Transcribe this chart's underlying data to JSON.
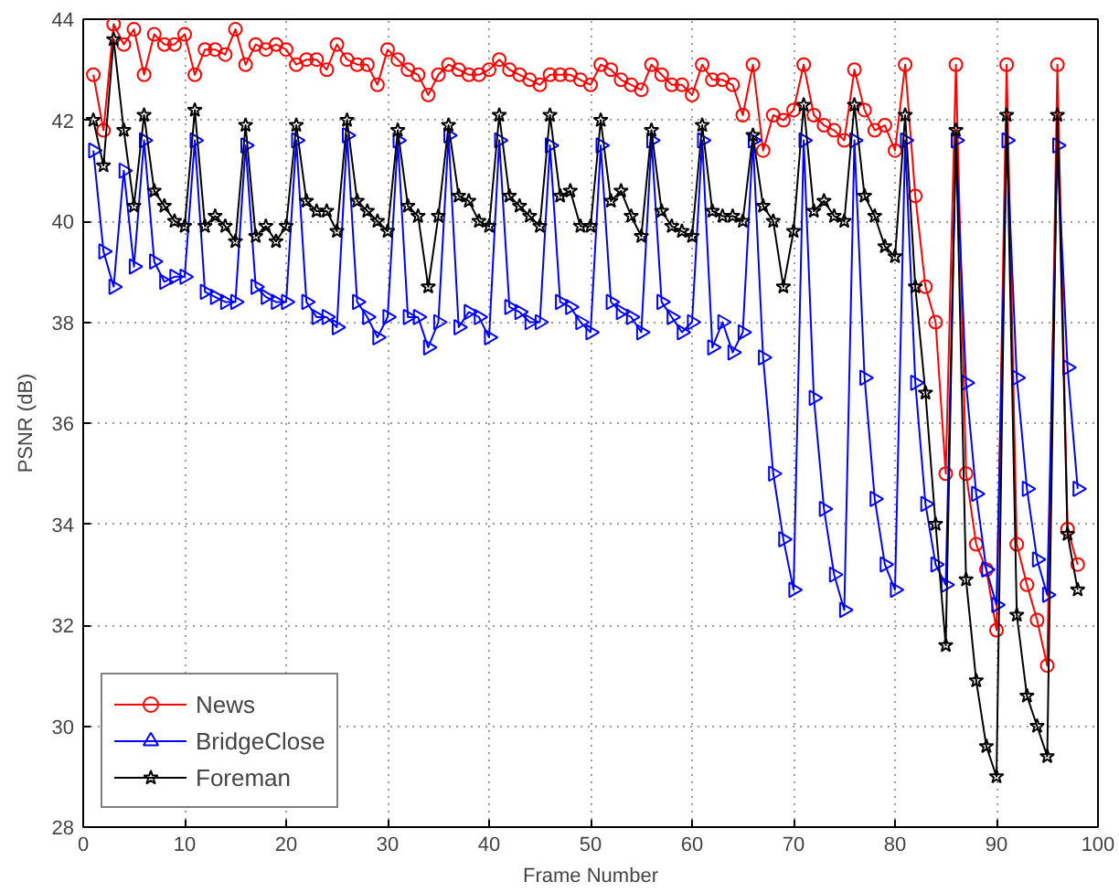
{
  "chart_data": {
    "type": "line",
    "xlabel": "Frame Number",
    "ylabel": "PSNR (dB)",
    "x": [
      1,
      2,
      3,
      4,
      5,
      6,
      7,
      8,
      9,
      10,
      11,
      12,
      13,
      14,
      15,
      16,
      17,
      18,
      19,
      20,
      21,
      22,
      23,
      24,
      25,
      26,
      27,
      28,
      29,
      30,
      31,
      32,
      33,
      34,
      35,
      36,
      37,
      38,
      39,
      40,
      41,
      42,
      43,
      44,
      45,
      46,
      47,
      48,
      49,
      50,
      51,
      52,
      53,
      54,
      55,
      56,
      57,
      58,
      59,
      60,
      61,
      62,
      63,
      64,
      65,
      66,
      67,
      68,
      69,
      70,
      71,
      72,
      73,
      74,
      75,
      76,
      77,
      78,
      79,
      80,
      81,
      82,
      83,
      84,
      85,
      86,
      87,
      88,
      89,
      90,
      91,
      92,
      93,
      94,
      95,
      96,
      97,
      98
    ],
    "xlim": [
      0,
      100
    ],
    "xticks": [
      0,
      10,
      20,
      30,
      40,
      50,
      60,
      70,
      80,
      90,
      100
    ],
    "ylim": [
      28,
      44
    ],
    "yticks": [
      28,
      30,
      32,
      34,
      36,
      38,
      40,
      42,
      44
    ],
    "grid": true,
    "legend": "bottom left",
    "line_style": "solid",
    "series": [
      {
        "name": "News",
        "color": "#ff0000",
        "marker": "circle",
        "values": [
          42.9,
          41.8,
          43.9,
          43.5,
          43.8,
          42.9,
          43.7,
          43.5,
          43.5,
          43.7,
          42.9,
          43.4,
          43.4,
          43.3,
          43.8,
          43.1,
          43.5,
          43.4,
          43.5,
          43.4,
          43.1,
          43.2,
          43.2,
          43.0,
          43.5,
          43.2,
          43.1,
          43.1,
          42.7,
          43.4,
          43.2,
          43.0,
          42.9,
          42.5,
          42.9,
          43.1,
          43.0,
          42.9,
          42.9,
          43.0,
          43.2,
          43.0,
          42.9,
          42.8,
          42.7,
          42.9,
          42.9,
          42.9,
          42.8,
          42.7,
          43.1,
          43.0,
          42.8,
          42.7,
          42.6,
          43.1,
          42.9,
          42.7,
          42.7,
          42.5,
          43.1,
          42.8,
          42.8,
          42.7,
          42.1,
          43.1,
          41.4,
          42.1,
          42.0,
          42.2,
          43.1,
          42.1,
          41.9,
          41.8,
          41.6,
          43.0,
          42.2,
          41.8,
          41.9,
          41.4,
          43.1,
          40.5,
          38.7,
          38.0,
          35.0,
          43.1,
          35.0,
          33.6,
          33.1,
          31.9,
          43.1,
          33.6,
          32.8,
          32.1,
          31.2,
          43.1,
          33.9,
          33.2
        ]
      },
      {
        "name": "BridgeClose",
        "color": "#0000ff",
        "marker": "triangle",
        "values": [
          41.4,
          39.4,
          38.7,
          41.0,
          39.1,
          41.6,
          39.2,
          38.8,
          38.9,
          38.9,
          41.6,
          38.6,
          38.5,
          38.4,
          38.4,
          41.5,
          38.7,
          38.5,
          38.4,
          38.4,
          41.6,
          38.4,
          38.1,
          38.1,
          37.9,
          41.7,
          38.4,
          38.1,
          37.7,
          38.1,
          41.6,
          38.1,
          38.1,
          37.5,
          38.0,
          41.7,
          37.9,
          38.2,
          38.1,
          37.7,
          41.6,
          38.3,
          38.2,
          38.0,
          38.0,
          41.5,
          38.4,
          38.3,
          38.0,
          37.8,
          41.5,
          38.4,
          38.2,
          38.1,
          37.8,
          41.6,
          38.4,
          38.1,
          37.8,
          38.0,
          41.6,
          37.5,
          38.0,
          37.4,
          37.8,
          41.6,
          37.3,
          35.0,
          33.7,
          32.7,
          41.6,
          36.5,
          34.3,
          33.0,
          32.3,
          41.6,
          36.9,
          34.5,
          33.2,
          32.7,
          41.6,
          36.8,
          34.4,
          33.2,
          32.8,
          41.6,
          36.8,
          34.6,
          33.1,
          32.4,
          41.6,
          36.9,
          34.7,
          33.3,
          32.6,
          41.5,
          37.1,
          34.7
        ]
      },
      {
        "name": "Foreman",
        "color": "#000000",
        "marker": "star",
        "values": [
          42.0,
          41.1,
          43.6,
          41.8,
          40.3,
          42.1,
          40.6,
          40.3,
          40.0,
          39.9,
          42.2,
          39.9,
          40.1,
          39.9,
          39.6,
          41.9,
          39.7,
          39.9,
          39.6,
          39.9,
          41.9,
          40.4,
          40.2,
          40.2,
          39.8,
          42.0,
          40.4,
          40.2,
          40.0,
          39.8,
          41.8,
          40.3,
          40.1,
          38.7,
          40.1,
          41.9,
          40.5,
          40.4,
          40.0,
          39.9,
          42.1,
          40.5,
          40.3,
          40.1,
          39.9,
          42.1,
          40.5,
          40.6,
          39.9,
          39.9,
          42.0,
          40.4,
          40.6,
          40.1,
          39.7,
          41.8,
          40.2,
          39.9,
          39.8,
          39.7,
          41.9,
          40.2,
          40.1,
          40.1,
          40.0,
          41.7,
          40.3,
          40.0,
          38.7,
          39.8,
          42.3,
          40.2,
          40.4,
          40.1,
          40.0,
          42.3,
          40.5,
          40.1,
          39.5,
          39.3,
          42.1,
          38.7,
          36.6,
          34.0,
          31.6,
          41.8,
          32.9,
          30.9,
          29.6,
          29.0,
          42.1,
          32.2,
          30.6,
          30.0,
          29.4,
          42.1,
          33.8,
          32.7
        ]
      }
    ]
  }
}
